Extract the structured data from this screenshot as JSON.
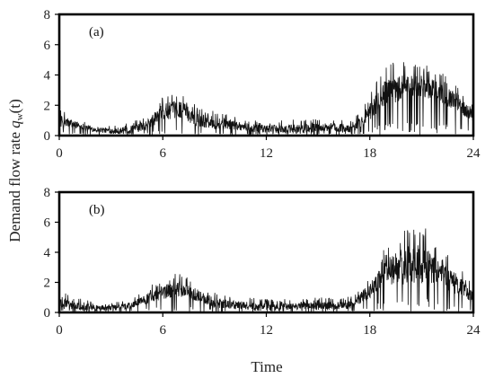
{
  "chart_data": [
    {
      "type": "line",
      "panel_label": "(a)",
      "xlim": [
        0,
        24
      ],
      "ylim": [
        0,
        8
      ],
      "xticks": [
        "0",
        "6",
        "12",
        "18",
        "24"
      ],
      "yticks": [
        "0",
        "2",
        "4",
        "6",
        "8"
      ],
      "x": [
        0,
        1,
        2,
        3,
        4,
        5,
        6,
        7,
        8,
        9,
        10,
        11,
        12,
        13,
        14,
        15,
        16,
        17,
        18,
        19,
        20,
        21,
        22,
        23,
        24
      ],
      "series": [
        {
          "values": [
            0.9,
            0.7,
            0.4,
            0.3,
            0.3,
            0.6,
            1.5,
            1.7,
            1.0,
            0.8,
            0.7,
            0.5,
            0.4,
            0.4,
            0.4,
            0.5,
            0.5,
            0.4,
            1.5,
            2.8,
            3.1,
            3.2,
            2.8,
            2.2,
            1.3
          ],
          "envelope_max": [
            1.8,
            1.2,
            0.8,
            0.7,
            0.9,
            1.3,
            2.7,
            3.0,
            2.0,
            1.7,
            1.4,
            1.1,
            1.0,
            1.0,
            1.1,
            1.1,
            1.2,
            1.0,
            2.7,
            4.9,
            4.9,
            4.8,
            4.3,
            3.5,
            2.3
          ]
        }
      ]
    },
    {
      "type": "line",
      "panel_label": "(b)",
      "xlim": [
        0,
        24
      ],
      "ylim": [
        0,
        8
      ],
      "xticks": [
        "0",
        "6",
        "12",
        "18",
        "24"
      ],
      "yticks": [
        "0",
        "2",
        "4",
        "6",
        "8"
      ],
      "x": [
        0,
        1,
        2,
        3,
        4,
        5,
        6,
        7,
        8,
        9,
        10,
        11,
        12,
        13,
        14,
        15,
        16,
        17,
        18,
        19,
        20,
        21,
        22,
        23,
        24
      ],
      "series": [
        {
          "values": [
            0.6,
            0.4,
            0.3,
            0.3,
            0.4,
            0.8,
            1.3,
            1.5,
            1.1,
            0.6,
            0.5,
            0.4,
            0.3,
            0.3,
            0.4,
            0.4,
            0.4,
            0.5,
            1.4,
            2.6,
            3.0,
            3.1,
            2.6,
            1.8,
            1.0
          ],
          "envelope_max": [
            1.6,
            1.0,
            0.7,
            0.7,
            0.9,
            1.6,
            2.3,
            2.7,
            2.0,
            1.4,
            1.1,
            1.0,
            0.9,
            0.9,
            0.9,
            1.0,
            1.0,
            1.1,
            2.5,
            4.6,
            5.8,
            6.0,
            4.3,
            3.4,
            1.8
          ]
        }
      ]
    }
  ],
  "shared_labels": {
    "ylabel_main": "Demand flow rate ",
    "ylabel_q": "q",
    "ylabel_sub": "w",
    "ylabel_arg": "(t)",
    "xlabel": "Time"
  }
}
